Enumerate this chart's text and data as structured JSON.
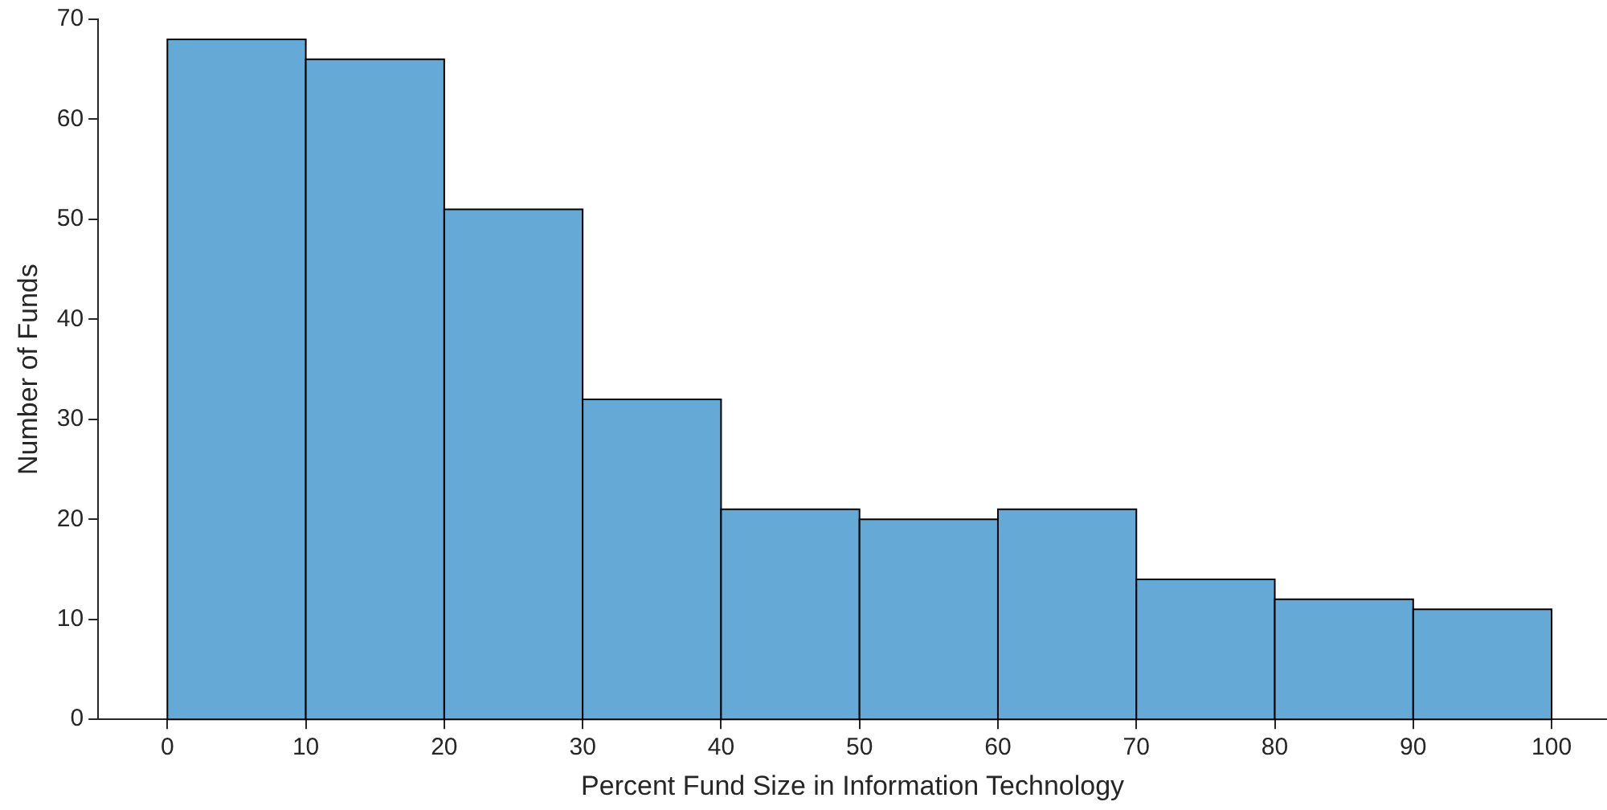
{
  "chart_data": {
    "type": "histogram",
    "xlabel": "Percent Fund Size in Information Technology",
    "ylabel": "Number of Funds",
    "bins": [
      0,
      10,
      20,
      30,
      40,
      50,
      60,
      70,
      80,
      90,
      100
    ],
    "values": [
      68,
      66,
      51,
      32,
      21,
      20,
      21,
      14,
      12,
      11
    ],
    "color": "#65a9d7",
    "xlim": [
      -5,
      104
    ],
    "xticks": [
      0,
      10,
      20,
      30,
      40,
      50,
      60,
      70,
      80,
      90,
      100
    ],
    "ylim": [
      0,
      70
    ],
    "yticks": [
      0,
      10,
      20,
      30,
      40,
      50,
      60,
      70
    ],
    "grid": false,
    "legend": false
  }
}
